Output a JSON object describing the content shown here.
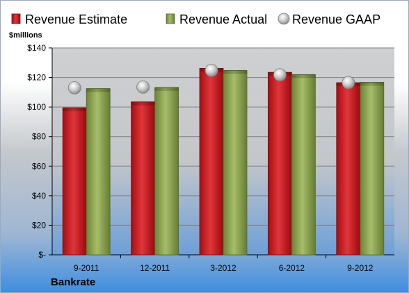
{
  "chart_data": {
    "type": "bar",
    "ylabel": "$millions",
    "company": "Bankrate",
    "categories": [
      "9-2011",
      "12-2011",
      "3-2012",
      "6-2012",
      "9-2012"
    ],
    "y_tick_labels": [
      "$-",
      "$20",
      "$40",
      "$60",
      "$80",
      "$100",
      "$120",
      "$140"
    ],
    "ylim": [
      0,
      140
    ],
    "grid": true,
    "legend_position": "top",
    "series": [
      {
        "name": "Revenue Estimate",
        "kind": "bar",
        "color": "#c8151b",
        "values": [
          99.5,
          103.5,
          126.2,
          123.5,
          116.5
        ]
      },
      {
        "name": "Revenue Actual",
        "kind": "bar",
        "color": "#8ea456",
        "values": [
          112.5,
          113.3,
          124.8,
          122.0,
          116.8
        ]
      },
      {
        "name": "Revenue GAAP",
        "kind": "marker",
        "color": "#b8b8b8",
        "values": [
          113.0,
          113.5,
          124.8,
          121.8,
          116.5
        ]
      }
    ]
  }
}
